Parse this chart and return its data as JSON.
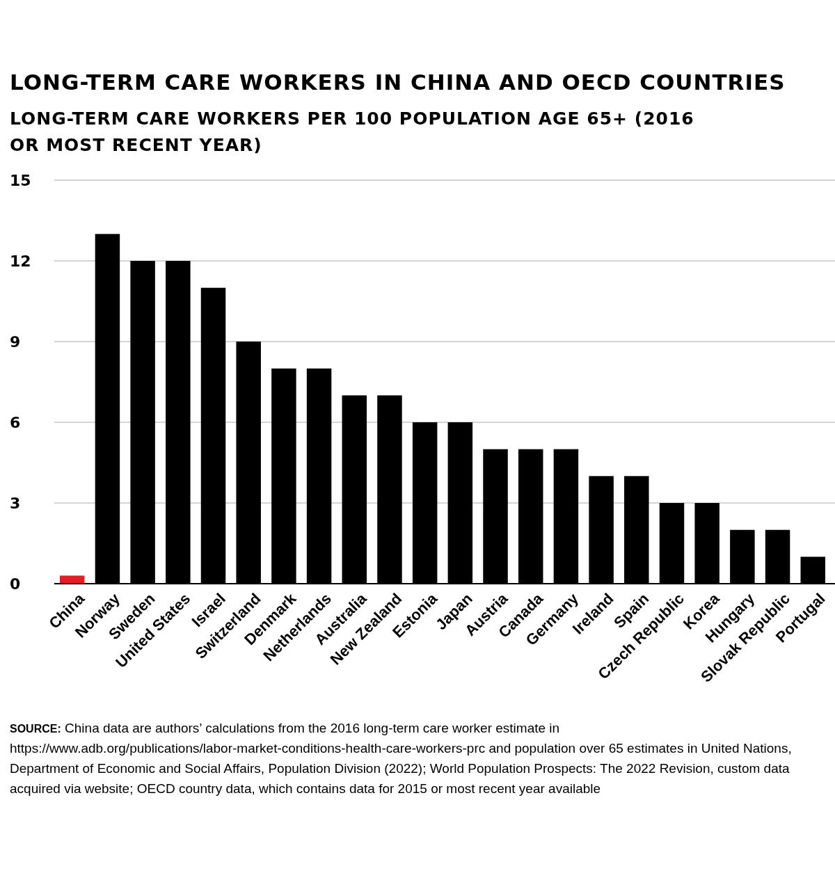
{
  "chart_data": {
    "type": "bar",
    "title": "LONG-TERM CARE WORKERS IN CHINA AND OECD COUNTRIES",
    "subtitle": "LONG-TERM CARE WORKERS PER 100 POPULATION AGE 65+ (2016 OR MOST RECENT YEAR)",
    "categories": [
      "China",
      "Norway",
      "Sweden",
      "United States",
      "Israel",
      "Switzerland",
      "Denmark",
      "Netherlands",
      "Australia",
      "New Zealand",
      "Estonia",
      "Japan",
      "Austria",
      "Canada",
      "Germany",
      "Ireland",
      "Spain",
      "Czech Republic",
      "Korea",
      "Hungary",
      "Slovak Republic",
      "Portugal"
    ],
    "values": [
      0.3,
      13,
      12,
      12,
      11,
      9,
      8,
      8,
      7,
      7,
      6,
      6,
      5,
      5,
      5,
      4,
      4,
      3,
      3,
      2,
      2,
      1
    ],
    "colors": [
      "#e31e24",
      "#000000",
      "#000000",
      "#000000",
      "#000000",
      "#000000",
      "#000000",
      "#000000",
      "#000000",
      "#000000",
      "#000000",
      "#000000",
      "#000000",
      "#000000",
      "#000000",
      "#000000",
      "#000000",
      "#000000",
      "#000000",
      "#000000",
      "#000000",
      "#000000"
    ],
    "ylim": [
      0,
      15
    ],
    "yticks": [
      0,
      3,
      6,
      9,
      12,
      15
    ],
    "grid": "y",
    "annotations": [
      "SOURCE: China data are authors’ calculations from the 2016 long-term care worker estimate in https://www.adb.org/publications/labor-market-conditions-health-care-workers-prc and population over 65 estimates in United Nations, Department of Economic and Social Affairs, Population Division (2022); World Population Prospects: The 2022 Revision, custom data acquired via website; OECD country data, which contains data for 2015 or most recent year available"
    ]
  }
}
